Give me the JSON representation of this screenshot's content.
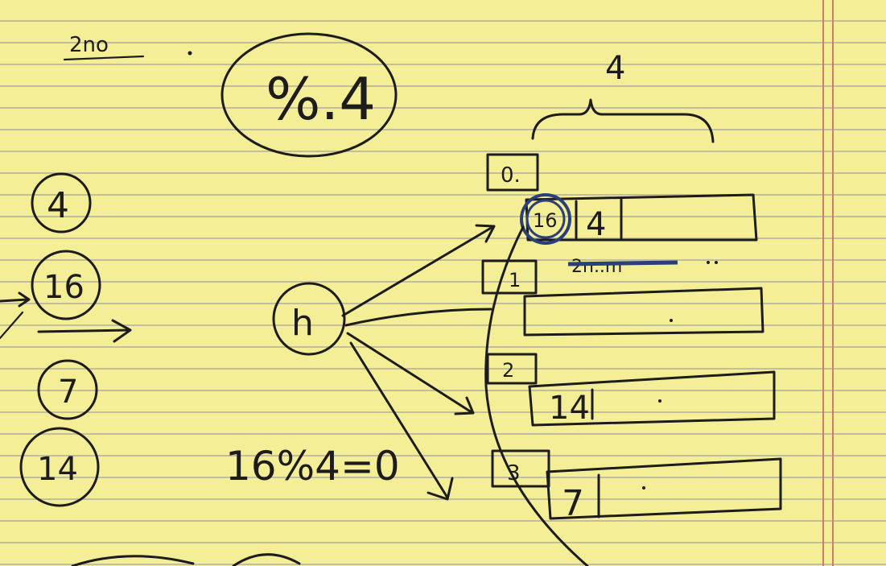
{
  "note": {
    "heading": "2no",
    "modulus_circle": "%.4",
    "bucket_count": "4",
    "hash_node": "h",
    "equation": "16%4=0"
  },
  "keys": [
    {
      "label": "4"
    },
    {
      "label": "16"
    },
    {
      "label": "7"
    },
    {
      "label": "14"
    }
  ],
  "buckets": [
    {
      "index": "0.",
      "entries": [
        "16",
        "4"
      ]
    },
    {
      "index": "1",
      "entries": []
    },
    {
      "index": "2",
      "entries": [
        "14"
      ]
    },
    {
      "index": "3",
      "entries": [
        "7"
      ]
    }
  ],
  "struck_text": "2n..m",
  "colors": {
    "paper": "#f4ef97",
    "ink": "#1d1c1a",
    "blue_ink": "#2b3f78",
    "margin_rule": "#d47a6a"
  }
}
